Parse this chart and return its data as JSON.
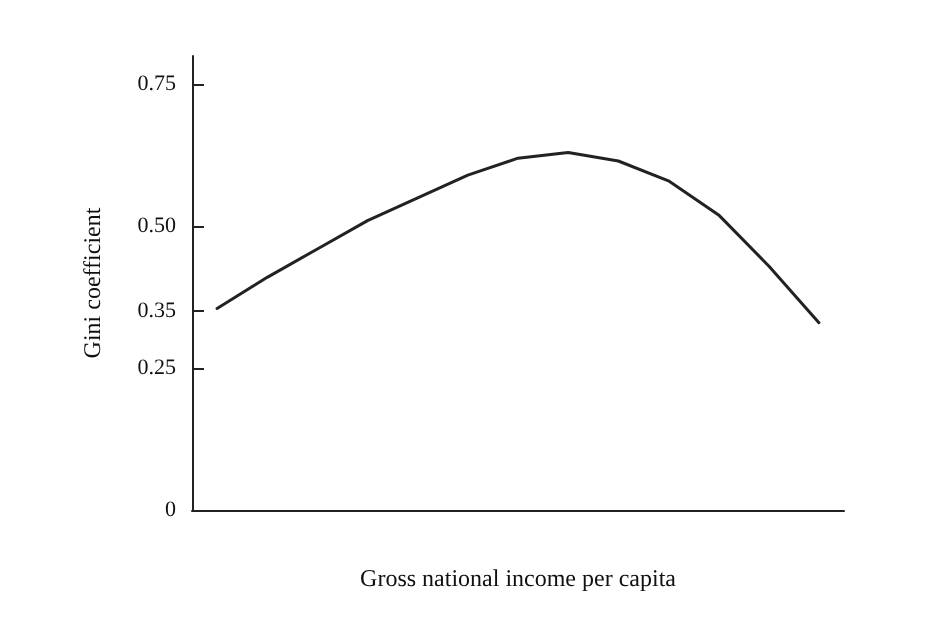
{
  "chart_data": {
    "type": "line",
    "xlabel": "Gross national income per capita",
    "ylabel": "Gini coefficient",
    "categories": [
      null,
      null,
      null,
      null,
      null,
      null,
      null,
      null,
      null,
      null,
      null,
      null,
      null
    ],
    "values": [
      0.355,
      0.41,
      0.46,
      0.51,
      0.55,
      0.59,
      0.62,
      0.63,
      0.615,
      0.58,
      0.52,
      0.43,
      0.33
    ],
    "color": "#222222",
    "ylim": [
      0,
      0.8
    ],
    "yticks": [
      0,
      {
        "value": 0.25,
        "label": "0.25"
      },
      {
        "value": 0.35,
        "label": "0.35"
      },
      {
        "value": 0.5,
        "label": "0.50"
      },
      {
        "value": 0.75,
        "label": "0.75"
      }
    ],
    "grid": false,
    "marker": "none",
    "line_style": "solid",
    "tick_labels": "y"
  }
}
